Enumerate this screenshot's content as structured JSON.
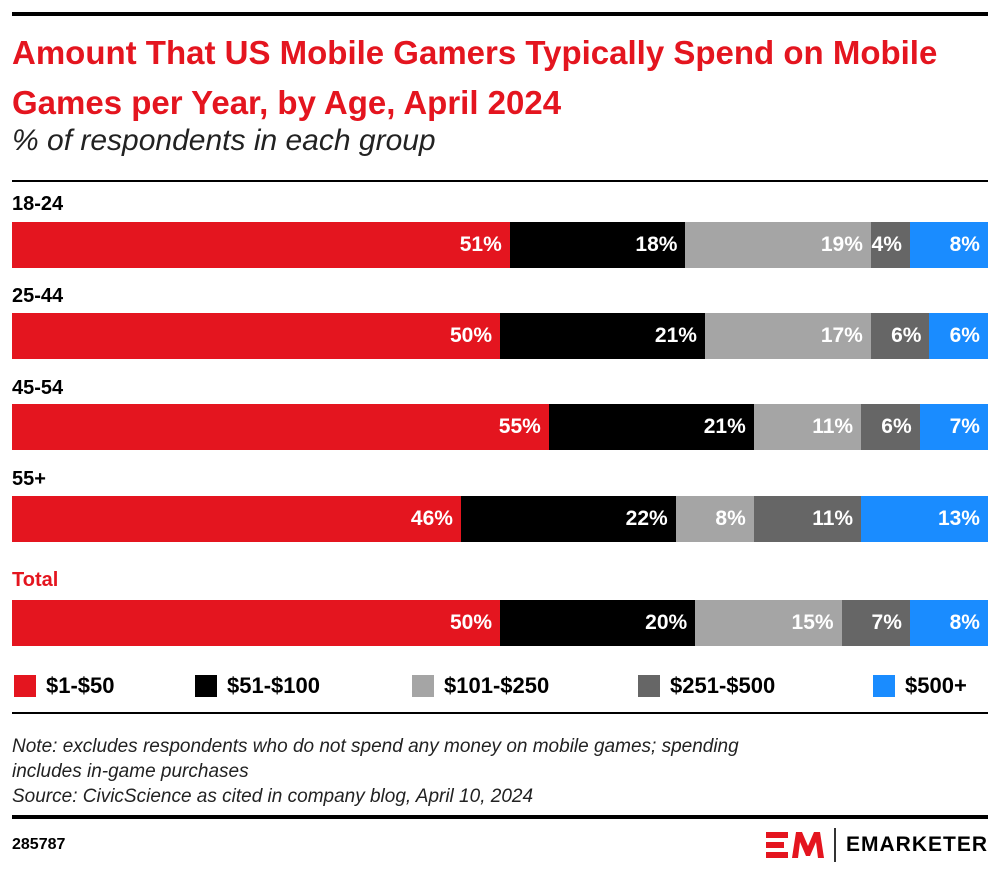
{
  "chart_data": {
    "type": "bar",
    "orientation": "horizontal-stacked-100",
    "title": "Amount That US Mobile Gamers Typically Spend on Mobile Games per Year, by Age, April 2024",
    "subtitle": "% of respondents in each group",
    "categories": [
      "18-24",
      "25-44",
      "45-54",
      "55+",
      "Total"
    ],
    "series": [
      {
        "name": "$1-$50",
        "color": "#e4151f",
        "values": [
          51,
          50,
          55,
          46,
          50
        ]
      },
      {
        "name": "$51-$100",
        "color": "#000000",
        "values": [
          18,
          21,
          21,
          22,
          20
        ]
      },
      {
        "name": "$101-$250",
        "color": "#a5a5a5",
        "values": [
          19,
          17,
          11,
          8,
          15
        ]
      },
      {
        "name": "$251-$500",
        "color": "#666666",
        "values": [
          4,
          6,
          6,
          11,
          7
        ]
      },
      {
        "name": "$500+",
        "color": "#1a8cff",
        "values": [
          8,
          6,
          7,
          13,
          8
        ]
      }
    ],
    "value_suffix": "%",
    "xlim": [
      0,
      100
    ],
    "grid": false,
    "legend": "bottom",
    "highlight_category": "Total",
    "highlight_color": "#e4151f"
  },
  "note": "Note: excludes respondents who do not spend any money on mobile games; spending includes in-game purchases",
  "source": "Source: CivicScience as cited in company blog, April 10, 2024",
  "chart_id": "285787",
  "brand": "EMARKETER"
}
